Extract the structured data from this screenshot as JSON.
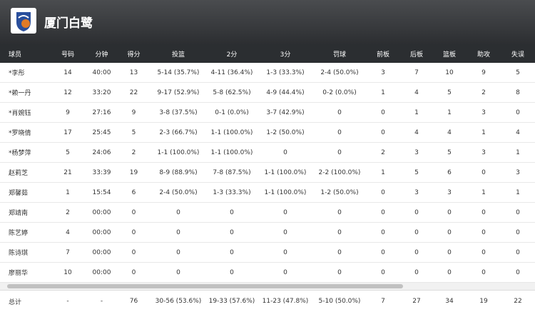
{
  "header": {
    "title": "厦门白鹭"
  },
  "table": {
    "columns": [
      "球员",
      "号码",
      "分钟",
      "得分",
      "投篮",
      "2分",
      "3分",
      "罚球",
      "前板",
      "后板",
      "篮板",
      "助攻",
      "失误"
    ],
    "rows": [
      [
        "*李彤",
        "14",
        "40:00",
        "13",
        "5-14 (35.7%)",
        "4-11 (36.4%)",
        "1-3 (33.3%)",
        "2-4 (50.0%)",
        "3",
        "7",
        "10",
        "9",
        "5"
      ],
      [
        "*赖一丹",
        "12",
        "33:20",
        "22",
        "9-17 (52.9%)",
        "5-8 (62.5%)",
        "4-9 (44.4%)",
        "0-2 (0.0%)",
        "1",
        "4",
        "5",
        "2",
        "8"
      ],
      [
        "*肖婉钰",
        "9",
        "27:16",
        "9",
        "3-8 (37.5%)",
        "0-1 (0.0%)",
        "3-7 (42.9%)",
        "0",
        "0",
        "1",
        "1",
        "3",
        "0"
      ],
      [
        "*罗晓倩",
        "17",
        "25:45",
        "5",
        "2-3 (66.7%)",
        "1-1 (100.0%)",
        "1-2 (50.0%)",
        "0",
        "0",
        "4",
        "4",
        "1",
        "4"
      ],
      [
        "*杨梦萍",
        "5",
        "24:06",
        "2",
        "1-1 (100.0%)",
        "1-1 (100.0%)",
        "0",
        "0",
        "2",
        "3",
        "5",
        "3",
        "1"
      ],
      [
        "赵莉芝",
        "21",
        "33:39",
        "19",
        "8-9 (88.9%)",
        "7-8 (87.5%)",
        "1-1 (100.0%)",
        "2-2 (100.0%)",
        "1",
        "5",
        "6",
        "0",
        "3"
      ],
      [
        "郑馨茹",
        "1",
        "15:54",
        "6",
        "2-4 (50.0%)",
        "1-3 (33.3%)",
        "1-1 (100.0%)",
        "1-2 (50.0%)",
        "0",
        "3",
        "3",
        "1",
        "1"
      ],
      [
        "郑靖南",
        "2",
        "00:00",
        "0",
        "0",
        "0",
        "0",
        "0",
        "0",
        "0",
        "0",
        "0",
        "0"
      ],
      [
        "陈艺婷",
        "4",
        "00:00",
        "0",
        "0",
        "0",
        "0",
        "0",
        "0",
        "0",
        "0",
        "0",
        "0"
      ],
      [
        "陈诗琪",
        "7",
        "00:00",
        "0",
        "0",
        "0",
        "0",
        "0",
        "0",
        "0",
        "0",
        "0",
        "0"
      ],
      [
        "廖丽华",
        "10",
        "00:00",
        "0",
        "0",
        "0",
        "0",
        "0",
        "0",
        "0",
        "0",
        "0",
        "0"
      ]
    ],
    "totals": [
      "总计",
      "-",
      "-",
      "76",
      "30-56 (53.6%)",
      "19-33 (57.6%)",
      "11-23 (47.8%)",
      "5-10 (50.0%)",
      "7",
      "27",
      "34",
      "19",
      "22"
    ]
  }
}
